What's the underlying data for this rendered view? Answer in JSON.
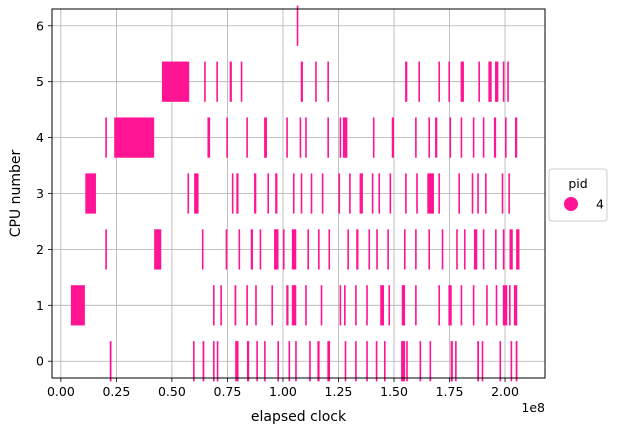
{
  "chart_data": {
    "type": "scatter",
    "xlabel": "elapsed clock",
    "ylabel": "CPU number",
    "x_offset_text": "1e8",
    "xlim": [
      -0.04,
      2.18
    ],
    "ylim": [
      -0.3,
      6.3
    ],
    "x_ticks": [
      0.0,
      0.25,
      0.5,
      0.75,
      1.0,
      1.25,
      1.5,
      1.75,
      2.0
    ],
    "x_tick_labels": [
      "0.00",
      "0.25",
      "0.50",
      "0.75",
      "1.00",
      "1.25",
      "1.50",
      "1.75",
      "2.00"
    ],
    "y_ticks": [
      0,
      1,
      2,
      3,
      4,
      5,
      6
    ],
    "y_tick_labels": [
      "0",
      "1",
      "2",
      "3",
      "4",
      "5",
      "6"
    ],
    "grid": true,
    "legend": {
      "title": "pid",
      "placement": "right",
      "entries": [
        {
          "label": "4",
          "color": "#ff1493"
        }
      ]
    },
    "series": [
      {
        "name": "4",
        "color": "#ff1493",
        "segments": [
          {
            "cpu": 0,
            "start": 0.22,
            "end": 0.228
          },
          {
            "cpu": 0,
            "start": 0.595,
            "end": 0.602
          },
          {
            "cpu": 0,
            "start": 0.638,
            "end": 0.646
          },
          {
            "cpu": 0,
            "start": 0.685,
            "end": 0.691
          },
          {
            "cpu": 0,
            "start": 0.702,
            "end": 0.708
          },
          {
            "cpu": 0,
            "start": 0.785,
            "end": 0.8
          },
          {
            "cpu": 0,
            "start": 0.838,
            "end": 0.848
          },
          {
            "cpu": 0,
            "start": 0.88,
            "end": 0.886
          },
          {
            "cpu": 0,
            "start": 0.915,
            "end": 0.922
          },
          {
            "cpu": 0,
            "start": 0.975,
            "end": 0.981
          },
          {
            "cpu": 0,
            "start": 1.025,
            "end": 1.032
          },
          {
            "cpu": 0,
            "start": 1.055,
            "end": 1.061
          },
          {
            "cpu": 0,
            "start": 1.118,
            "end": 1.124
          },
          {
            "cpu": 0,
            "start": 1.155,
            "end": 1.165
          },
          {
            "cpu": 0,
            "start": 1.2,
            "end": 1.212
          },
          {
            "cpu": 0,
            "start": 1.278,
            "end": 1.284
          },
          {
            "cpu": 0,
            "start": 1.325,
            "end": 1.331
          },
          {
            "cpu": 0,
            "start": 1.375,
            "end": 1.381
          },
          {
            "cpu": 0,
            "start": 1.418,
            "end": 1.424
          },
          {
            "cpu": 0,
            "start": 1.455,
            "end": 1.461
          },
          {
            "cpu": 0,
            "start": 1.532,
            "end": 1.55
          },
          {
            "cpu": 0,
            "start": 1.555,
            "end": 1.561
          },
          {
            "cpu": 0,
            "start": 1.615,
            "end": 1.621
          },
          {
            "cpu": 0,
            "start": 1.66,
            "end": 1.666
          },
          {
            "cpu": 0,
            "start": 1.755,
            "end": 1.765
          },
          {
            "cpu": 0,
            "start": 1.775,
            "end": 1.781
          },
          {
            "cpu": 0,
            "start": 1.875,
            "end": 1.883
          },
          {
            "cpu": 0,
            "start": 1.895,
            "end": 1.901
          },
          {
            "cpu": 0,
            "start": 1.975,
            "end": 1.981
          },
          {
            "cpu": 0,
            "start": 2.025,
            "end": 2.031
          },
          {
            "cpu": 0,
            "start": 2.048,
            "end": 2.056
          },
          {
            "cpu": 1,
            "start": 0.045,
            "end": 0.108
          },
          {
            "cpu": 1,
            "start": 0.685,
            "end": 0.691
          },
          {
            "cpu": 1,
            "start": 0.718,
            "end": 0.724
          },
          {
            "cpu": 1,
            "start": 0.782,
            "end": 0.79
          },
          {
            "cpu": 1,
            "start": 0.835,
            "end": 0.841
          },
          {
            "cpu": 1,
            "start": 0.875,
            "end": 0.881
          },
          {
            "cpu": 1,
            "start": 0.948,
            "end": 0.954
          },
          {
            "cpu": 1,
            "start": 1.015,
            "end": 1.025
          },
          {
            "cpu": 1,
            "start": 1.04,
            "end": 1.06
          },
          {
            "cpu": 1,
            "start": 1.1,
            "end": 1.106
          },
          {
            "cpu": 1,
            "start": 1.17,
            "end": 1.176
          },
          {
            "cpu": 1,
            "start": 1.255,
            "end": 1.261
          },
          {
            "cpu": 1,
            "start": 1.275,
            "end": 1.281
          },
          {
            "cpu": 1,
            "start": 1.325,
            "end": 1.331
          },
          {
            "cpu": 1,
            "start": 1.375,
            "end": 1.381
          },
          {
            "cpu": 1,
            "start": 1.438,
            "end": 1.455
          },
          {
            "cpu": 1,
            "start": 1.475,
            "end": 1.481
          },
          {
            "cpu": 1,
            "start": 1.535,
            "end": 1.55
          },
          {
            "cpu": 1,
            "start": 1.595,
            "end": 1.601
          },
          {
            "cpu": 1,
            "start": 1.7,
            "end": 1.706
          },
          {
            "cpu": 1,
            "start": 1.745,
            "end": 1.76
          },
          {
            "cpu": 1,
            "start": 1.8,
            "end": 1.806
          },
          {
            "cpu": 1,
            "start": 1.855,
            "end": 1.861
          },
          {
            "cpu": 1,
            "start": 1.915,
            "end": 1.921
          },
          {
            "cpu": 1,
            "start": 1.958,
            "end": 1.964
          },
          {
            "cpu": 1,
            "start": 1.99,
            "end": 2.01
          },
          {
            "cpu": 1,
            "start": 2.018,
            "end": 2.024
          },
          {
            "cpu": 1,
            "start": 2.04,
            "end": 2.055
          },
          {
            "cpu": 2,
            "start": 0.2,
            "end": 0.206
          },
          {
            "cpu": 2,
            "start": 0.42,
            "end": 0.452
          },
          {
            "cpu": 2,
            "start": 0.635,
            "end": 0.641
          },
          {
            "cpu": 2,
            "start": 0.742,
            "end": 0.748
          },
          {
            "cpu": 2,
            "start": 0.8,
            "end": 0.806
          },
          {
            "cpu": 2,
            "start": 0.855,
            "end": 0.865
          },
          {
            "cpu": 2,
            "start": 0.895,
            "end": 0.901
          },
          {
            "cpu": 2,
            "start": 0.96,
            "end": 0.98
          },
          {
            "cpu": 2,
            "start": 1.0,
            "end": 1.006
          },
          {
            "cpu": 2,
            "start": 1.04,
            "end": 1.06
          },
          {
            "cpu": 2,
            "start": 1.11,
            "end": 1.116
          },
          {
            "cpu": 2,
            "start": 1.158,
            "end": 1.164
          },
          {
            "cpu": 2,
            "start": 1.205,
            "end": 1.211
          },
          {
            "cpu": 2,
            "start": 1.29,
            "end": 1.296
          },
          {
            "cpu": 2,
            "start": 1.33,
            "end": 1.34
          },
          {
            "cpu": 2,
            "start": 1.385,
            "end": 1.391
          },
          {
            "cpu": 2,
            "start": 1.42,
            "end": 1.426
          },
          {
            "cpu": 2,
            "start": 1.47,
            "end": 1.476
          },
          {
            "cpu": 2,
            "start": 1.545,
            "end": 1.551
          },
          {
            "cpu": 2,
            "start": 1.595,
            "end": 1.601
          },
          {
            "cpu": 2,
            "start": 1.655,
            "end": 1.661
          },
          {
            "cpu": 2,
            "start": 1.715,
            "end": 1.721
          },
          {
            "cpu": 2,
            "start": 1.78,
            "end": 1.786
          },
          {
            "cpu": 2,
            "start": 1.815,
            "end": 1.821
          },
          {
            "cpu": 2,
            "start": 1.86,
            "end": 1.875
          },
          {
            "cpu": 2,
            "start": 1.9,
            "end": 1.906
          },
          {
            "cpu": 2,
            "start": 1.955,
            "end": 1.961
          },
          {
            "cpu": 2,
            "start": 1.99,
            "end": 1.996
          },
          {
            "cpu": 2,
            "start": 2.02,
            "end": 2.035
          },
          {
            "cpu": 2,
            "start": 2.05,
            "end": 2.065
          },
          {
            "cpu": 3,
            "start": 0.11,
            "end": 0.158
          },
          {
            "cpu": 3,
            "start": 0.57,
            "end": 0.576
          },
          {
            "cpu": 3,
            "start": 0.6,
            "end": 0.62
          },
          {
            "cpu": 3,
            "start": 0.77,
            "end": 0.776
          },
          {
            "cpu": 3,
            "start": 0.79,
            "end": 0.8
          },
          {
            "cpu": 3,
            "start": 0.87,
            "end": 0.88
          },
          {
            "cpu": 3,
            "start": 0.93,
            "end": 0.936
          },
          {
            "cpu": 3,
            "start": 0.965,
            "end": 0.975
          },
          {
            "cpu": 3,
            "start": 1.045,
            "end": 1.051
          },
          {
            "cpu": 3,
            "start": 1.08,
            "end": 1.086
          },
          {
            "cpu": 3,
            "start": 1.125,
            "end": 1.131
          },
          {
            "cpu": 3,
            "start": 1.175,
            "end": 1.181
          },
          {
            "cpu": 3,
            "start": 1.25,
            "end": 1.256
          },
          {
            "cpu": 3,
            "start": 1.298,
            "end": 1.304
          },
          {
            "cpu": 3,
            "start": 1.345,
            "end": 1.36
          },
          {
            "cpu": 3,
            "start": 1.4,
            "end": 1.406
          },
          {
            "cpu": 3,
            "start": 1.43,
            "end": 1.436
          },
          {
            "cpu": 3,
            "start": 1.48,
            "end": 1.486
          },
          {
            "cpu": 3,
            "start": 1.55,
            "end": 1.556
          },
          {
            "cpu": 3,
            "start": 1.6,
            "end": 1.606
          },
          {
            "cpu": 3,
            "start": 1.65,
            "end": 1.68
          },
          {
            "cpu": 3,
            "start": 1.7,
            "end": 1.706
          },
          {
            "cpu": 3,
            "start": 1.79,
            "end": 1.796
          },
          {
            "cpu": 3,
            "start": 1.85,
            "end": 1.856
          },
          {
            "cpu": 3,
            "start": 1.875,
            "end": 1.881
          },
          {
            "cpu": 3,
            "start": 1.91,
            "end": 1.916
          },
          {
            "cpu": 3,
            "start": 1.985,
            "end": 1.991
          },
          {
            "cpu": 3,
            "start": 2.015,
            "end": 2.021
          },
          {
            "cpu": 4,
            "start": 0.2,
            "end": 0.206
          },
          {
            "cpu": 4,
            "start": 0.24,
            "end": 0.42
          },
          {
            "cpu": 4,
            "start": 0.66,
            "end": 0.672
          },
          {
            "cpu": 4,
            "start": 0.745,
            "end": 0.751
          },
          {
            "cpu": 4,
            "start": 0.835,
            "end": 0.841
          },
          {
            "cpu": 4,
            "start": 0.915,
            "end": 0.928
          },
          {
            "cpu": 4,
            "start": 1.015,
            "end": 1.021
          },
          {
            "cpu": 4,
            "start": 1.075,
            "end": 1.081
          },
          {
            "cpu": 4,
            "start": 1.1,
            "end": 1.106
          },
          {
            "cpu": 4,
            "start": 1.2,
            "end": 1.206
          },
          {
            "cpu": 4,
            "start": 1.255,
            "end": 1.261
          },
          {
            "cpu": 4,
            "start": 1.27,
            "end": 1.29
          },
          {
            "cpu": 4,
            "start": 1.405,
            "end": 1.411
          },
          {
            "cpu": 4,
            "start": 1.49,
            "end": 1.5
          },
          {
            "cpu": 4,
            "start": 1.595,
            "end": 1.601
          },
          {
            "cpu": 4,
            "start": 1.655,
            "end": 1.661
          },
          {
            "cpu": 4,
            "start": 1.685,
            "end": 1.695
          },
          {
            "cpu": 4,
            "start": 1.75,
            "end": 1.756
          },
          {
            "cpu": 4,
            "start": 1.8,
            "end": 1.806
          },
          {
            "cpu": 4,
            "start": 1.855,
            "end": 1.861
          },
          {
            "cpu": 4,
            "start": 1.9,
            "end": 1.906
          },
          {
            "cpu": 4,
            "start": 1.95,
            "end": 1.96
          },
          {
            "cpu": 4,
            "start": 2.0,
            "end": 2.006
          },
          {
            "cpu": 4,
            "start": 2.045,
            "end": 2.055
          },
          {
            "cpu": 5,
            "start": 0.455,
            "end": 0.578
          },
          {
            "cpu": 5,
            "start": 0.645,
            "end": 0.651
          },
          {
            "cpu": 5,
            "start": 0.7,
            "end": 0.706
          },
          {
            "cpu": 5,
            "start": 0.76,
            "end": 0.77
          },
          {
            "cpu": 5,
            "start": 0.81,
            "end": 0.816
          },
          {
            "cpu": 5,
            "start": 1.08,
            "end": 1.09
          },
          {
            "cpu": 5,
            "start": 1.145,
            "end": 1.151
          },
          {
            "cpu": 5,
            "start": 1.2,
            "end": 1.206
          },
          {
            "cpu": 5,
            "start": 1.55,
            "end": 1.56
          },
          {
            "cpu": 5,
            "start": 1.61,
            "end": 1.616
          },
          {
            "cpu": 5,
            "start": 1.7,
            "end": 1.706
          },
          {
            "cpu": 5,
            "start": 1.745,
            "end": 1.751
          },
          {
            "cpu": 5,
            "start": 1.8,
            "end": 1.815
          },
          {
            "cpu": 5,
            "start": 1.88,
            "end": 1.886
          },
          {
            "cpu": 5,
            "start": 1.925,
            "end": 1.94
          },
          {
            "cpu": 5,
            "start": 1.955,
            "end": 1.97
          },
          {
            "cpu": 5,
            "start": 1.99,
            "end": 1.996
          },
          {
            "cpu": 5,
            "start": 2.01,
            "end": 2.016
          },
          {
            "cpu": 6,
            "start": 1.062,
            "end": 1.068
          }
        ]
      }
    ]
  }
}
